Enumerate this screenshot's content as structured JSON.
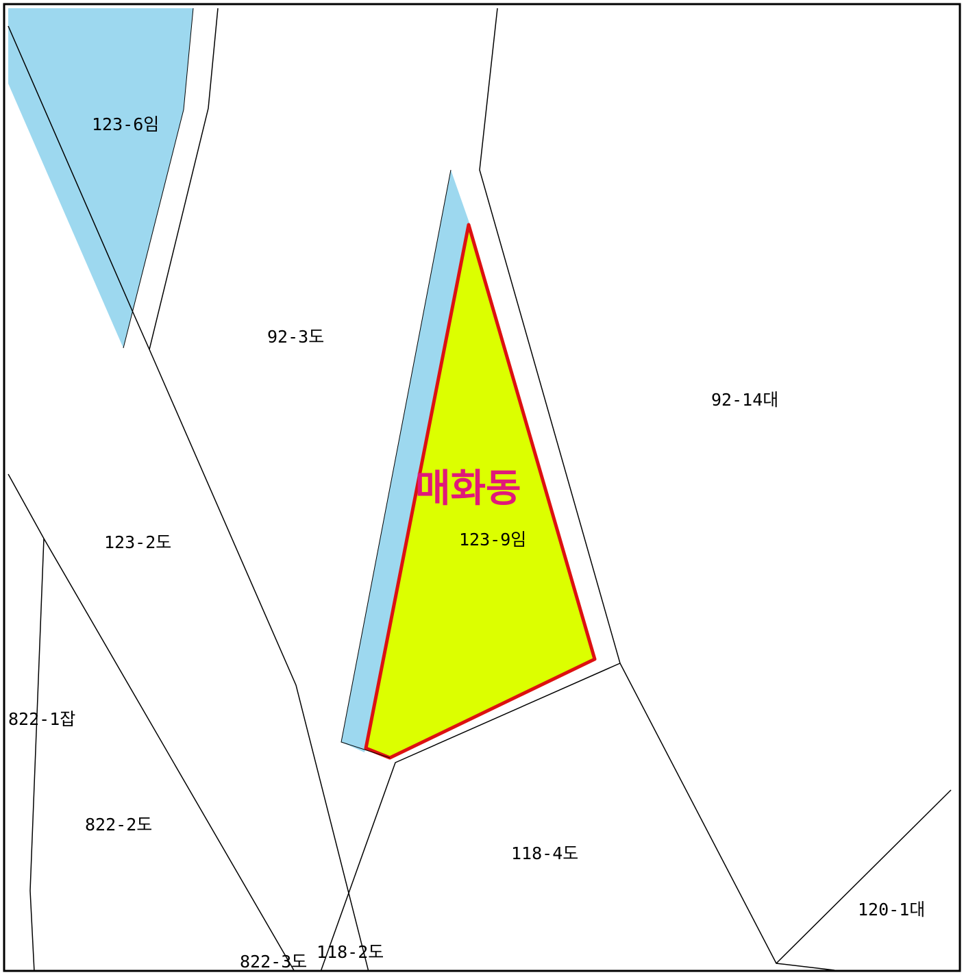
{
  "map": {
    "district_name": "매화동",
    "colors": {
      "background": "#ffffff",
      "boundary": "#000000",
      "road_fill": "#9dd8ef",
      "subject_fill": "#dcff00",
      "subject_outline": "#dd1111",
      "district_label": "#e0187a",
      "frame": "#000000"
    },
    "parcels": [
      {
        "id": "p-123-6",
        "label": "123-6임"
      },
      {
        "id": "p-92-3",
        "label": "92-3도"
      },
      {
        "id": "p-92-14",
        "label": "92-14대"
      },
      {
        "id": "p-123-9",
        "label": "123-9임",
        "highlighted": true
      },
      {
        "id": "p-123-2",
        "label": "123-2도"
      },
      {
        "id": "p-822-1",
        "label": "822-1잡"
      },
      {
        "id": "p-822-2",
        "label": "822-2도"
      },
      {
        "id": "p-118-4",
        "label": "118-4도"
      },
      {
        "id": "p-120-1",
        "label": "120-1대"
      },
      {
        "id": "p-822-3",
        "label": "822-3도"
      },
      {
        "id": "p-118-2",
        "label": "118-2도"
      }
    ]
  }
}
